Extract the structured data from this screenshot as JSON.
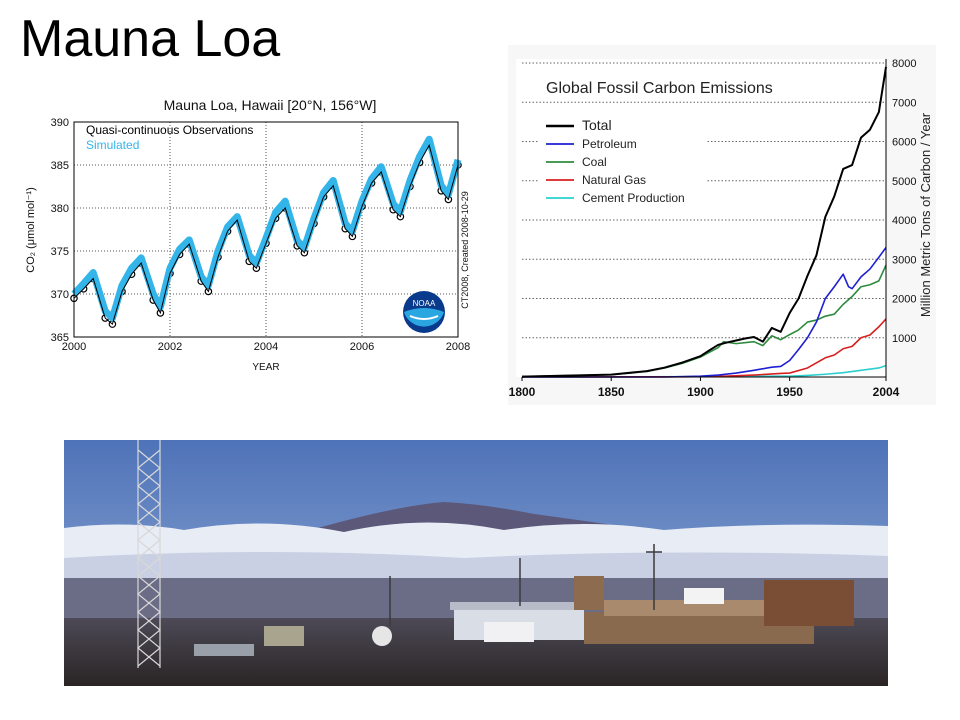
{
  "slide": {
    "title": "Mauna Loa"
  },
  "chart_data": [
    {
      "type": "line",
      "title": "Mauna Loa, Hawaii [20°N, 156°W]",
      "xlabel": "YEAR",
      "ylabel": "CO₂ (μmol mol⁻¹)",
      "xlim": [
        2000,
        2008
      ],
      "ylim": [
        365,
        390
      ],
      "x_ticks": [
        "2000",
        "2002",
        "2004",
        "2006",
        "2008"
      ],
      "y_ticks": [
        "365",
        "370",
        "375",
        "380",
        "385",
        "390"
      ],
      "legend": [
        "Quasi-continuous Observations",
        "Simulated"
      ],
      "side_note": "CT2008, Created 2008-10-29",
      "logo": "NOAA",
      "series": [
        {
          "name": "Quasi-continuous Observations",
          "color": "#000000",
          "style": "circles",
          "x": [
            2000.0,
            2000.2,
            2000.4,
            2000.65,
            2000.8,
            2001.0,
            2001.2,
            2001.4,
            2001.65,
            2001.8,
            2002.0,
            2002.2,
            2002.4,
            2002.65,
            2002.8,
            2003.0,
            2003.2,
            2003.4,
            2003.65,
            2003.8,
            2004.0,
            2004.2,
            2004.4,
            2004.65,
            2004.8,
            2005.0,
            2005.2,
            2005.4,
            2005.65,
            2005.8,
            2006.0,
            2006.2,
            2006.4,
            2006.65,
            2006.8,
            2007.0,
            2007.2,
            2007.4,
            2007.65,
            2007.8,
            2008.0
          ],
          "y": [
            369.5,
            370.6,
            371.8,
            367.2,
            366.5,
            370.3,
            372.3,
            373.6,
            369.3,
            367.8,
            372.4,
            374.6,
            375.8,
            371.5,
            370.3,
            374.3,
            377.3,
            378.6,
            373.8,
            373.0,
            375.9,
            378.8,
            380.0,
            375.6,
            374.8,
            378.2,
            381.3,
            382.6,
            377.6,
            376.7,
            380.2,
            382.9,
            384.2,
            379.8,
            379.0,
            382.5,
            385.3,
            387.3,
            382.0,
            381.0,
            385.0
          ]
        },
        {
          "name": "Simulated",
          "color": "#33b5ea",
          "style": "thick-line",
          "x": [
            2000.0,
            2000.2,
            2000.4,
            2000.65,
            2000.8,
            2001.0,
            2001.2,
            2001.4,
            2001.65,
            2001.8,
            2002.0,
            2002.2,
            2002.4,
            2002.65,
            2002.8,
            2003.0,
            2003.2,
            2003.4,
            2003.65,
            2003.8,
            2004.0,
            2004.2,
            2004.4,
            2004.65,
            2004.8,
            2005.0,
            2005.2,
            2005.4,
            2005.65,
            2005.8,
            2006.0,
            2006.2,
            2006.4,
            2006.65,
            2006.8,
            2007.0,
            2007.2,
            2007.4,
            2007.65,
            2007.8,
            2008.0
          ],
          "y": [
            370.0,
            371.2,
            372.5,
            368.0,
            367.2,
            371.0,
            373.0,
            374.2,
            370.0,
            368.5,
            373.0,
            375.2,
            376.3,
            372.0,
            371.0,
            375.0,
            377.8,
            379.0,
            374.5,
            373.6,
            376.5,
            379.5,
            380.8,
            376.2,
            375.4,
            378.8,
            381.8,
            383.2,
            378.2,
            377.3,
            380.8,
            383.4,
            384.8,
            380.5,
            379.6,
            383.2,
            386.0,
            388.0,
            382.6,
            381.6,
            385.6
          ]
        }
      ]
    },
    {
      "type": "line",
      "title": "Global Fossil Carbon Emissions",
      "xlabel": "",
      "ylabel": "Million Metric Tons of Carbon / Year",
      "xlim": [
        1800,
        2004
      ],
      "ylim": [
        0,
        8000
      ],
      "x_ticks": [
        "1800",
        "1850",
        "1900",
        "1950",
        "2004"
      ],
      "y_ticks": [
        "1000",
        "2000",
        "3000",
        "4000",
        "5000",
        "6000",
        "7000",
        "8000"
      ],
      "grid": "horizontal-dotted",
      "legend": [
        "Total",
        "Petroleum",
        "Coal",
        "Natural Gas",
        "Cement Production"
      ],
      "legend_position": "top-left",
      "series": [
        {
          "name": "Total",
          "color": "#000000",
          "x": [
            1800,
            1850,
            1870,
            1880,
            1890,
            1900,
            1905,
            1910,
            1915,
            1920,
            1925,
            1930,
            1935,
            1940,
            1945,
            1950,
            1955,
            1960,
            1965,
            1970,
            1975,
            1980,
            1985,
            1990,
            1995,
            2000,
            2004
          ],
          "y": [
            10,
            60,
            150,
            240,
            370,
            530,
            680,
            820,
            880,
            930,
            980,
            1020,
            900,
            1250,
            1150,
            1630,
            2000,
            2580,
            3100,
            4080,
            4600,
            5300,
            5400,
            6100,
            6300,
            6750,
            7900
          ]
        },
        {
          "name": "Petroleum",
          "color": "#1f1fd4",
          "x": [
            1800,
            1880,
            1900,
            1910,
            1920,
            1930,
            1940,
            1945,
            1950,
            1955,
            1960,
            1965,
            1970,
            1975,
            1980,
            1983,
            1985,
            1990,
            1995,
            2000,
            2004
          ],
          "y": [
            0,
            0,
            20,
            50,
            100,
            170,
            250,
            270,
            420,
            700,
            1000,
            1400,
            2000,
            2300,
            2620,
            2300,
            2250,
            2550,
            2750,
            3050,
            3300
          ]
        },
        {
          "name": "Coal",
          "color": "#2e8b3e",
          "x": [
            1800,
            1850,
            1870,
            1880,
            1890,
            1900,
            1910,
            1913,
            1920,
            1930,
            1935,
            1940,
            1945,
            1950,
            1955,
            1960,
            1965,
            1970,
            1975,
            1980,
            1985,
            1990,
            1995,
            2000,
            2004
          ],
          "y": [
            10,
            60,
            140,
            230,
            350,
            510,
            750,
            900,
            850,
            900,
            800,
            1050,
            950,
            1080,
            1200,
            1400,
            1450,
            1550,
            1600,
            1850,
            2050,
            2300,
            2350,
            2450,
            2850
          ]
        },
        {
          "name": "Natural Gas",
          "color": "#d92020",
          "x": [
            1800,
            1890,
            1910,
            1930,
            1945,
            1950,
            1960,
            1970,
            1975,
            1980,
            1985,
            1990,
            1995,
            2000,
            2004
          ],
          "y": [
            0,
            5,
            15,
            50,
            90,
            100,
            230,
            490,
            560,
            720,
            780,
            1000,
            1070,
            1280,
            1480
          ]
        },
        {
          "name": "Cement Production",
          "color": "#2ccfcf",
          "x": [
            1800,
            1920,
            1940,
            1950,
            1960,
            1970,
            1980,
            1990,
            2000,
            2004
          ],
          "y": [
            0,
            10,
            20,
            20,
            40,
            70,
            110,
            170,
            230,
            290
          ]
        }
      ]
    }
  ],
  "photo": {
    "subject": "mountain-observatory-landscape"
  }
}
